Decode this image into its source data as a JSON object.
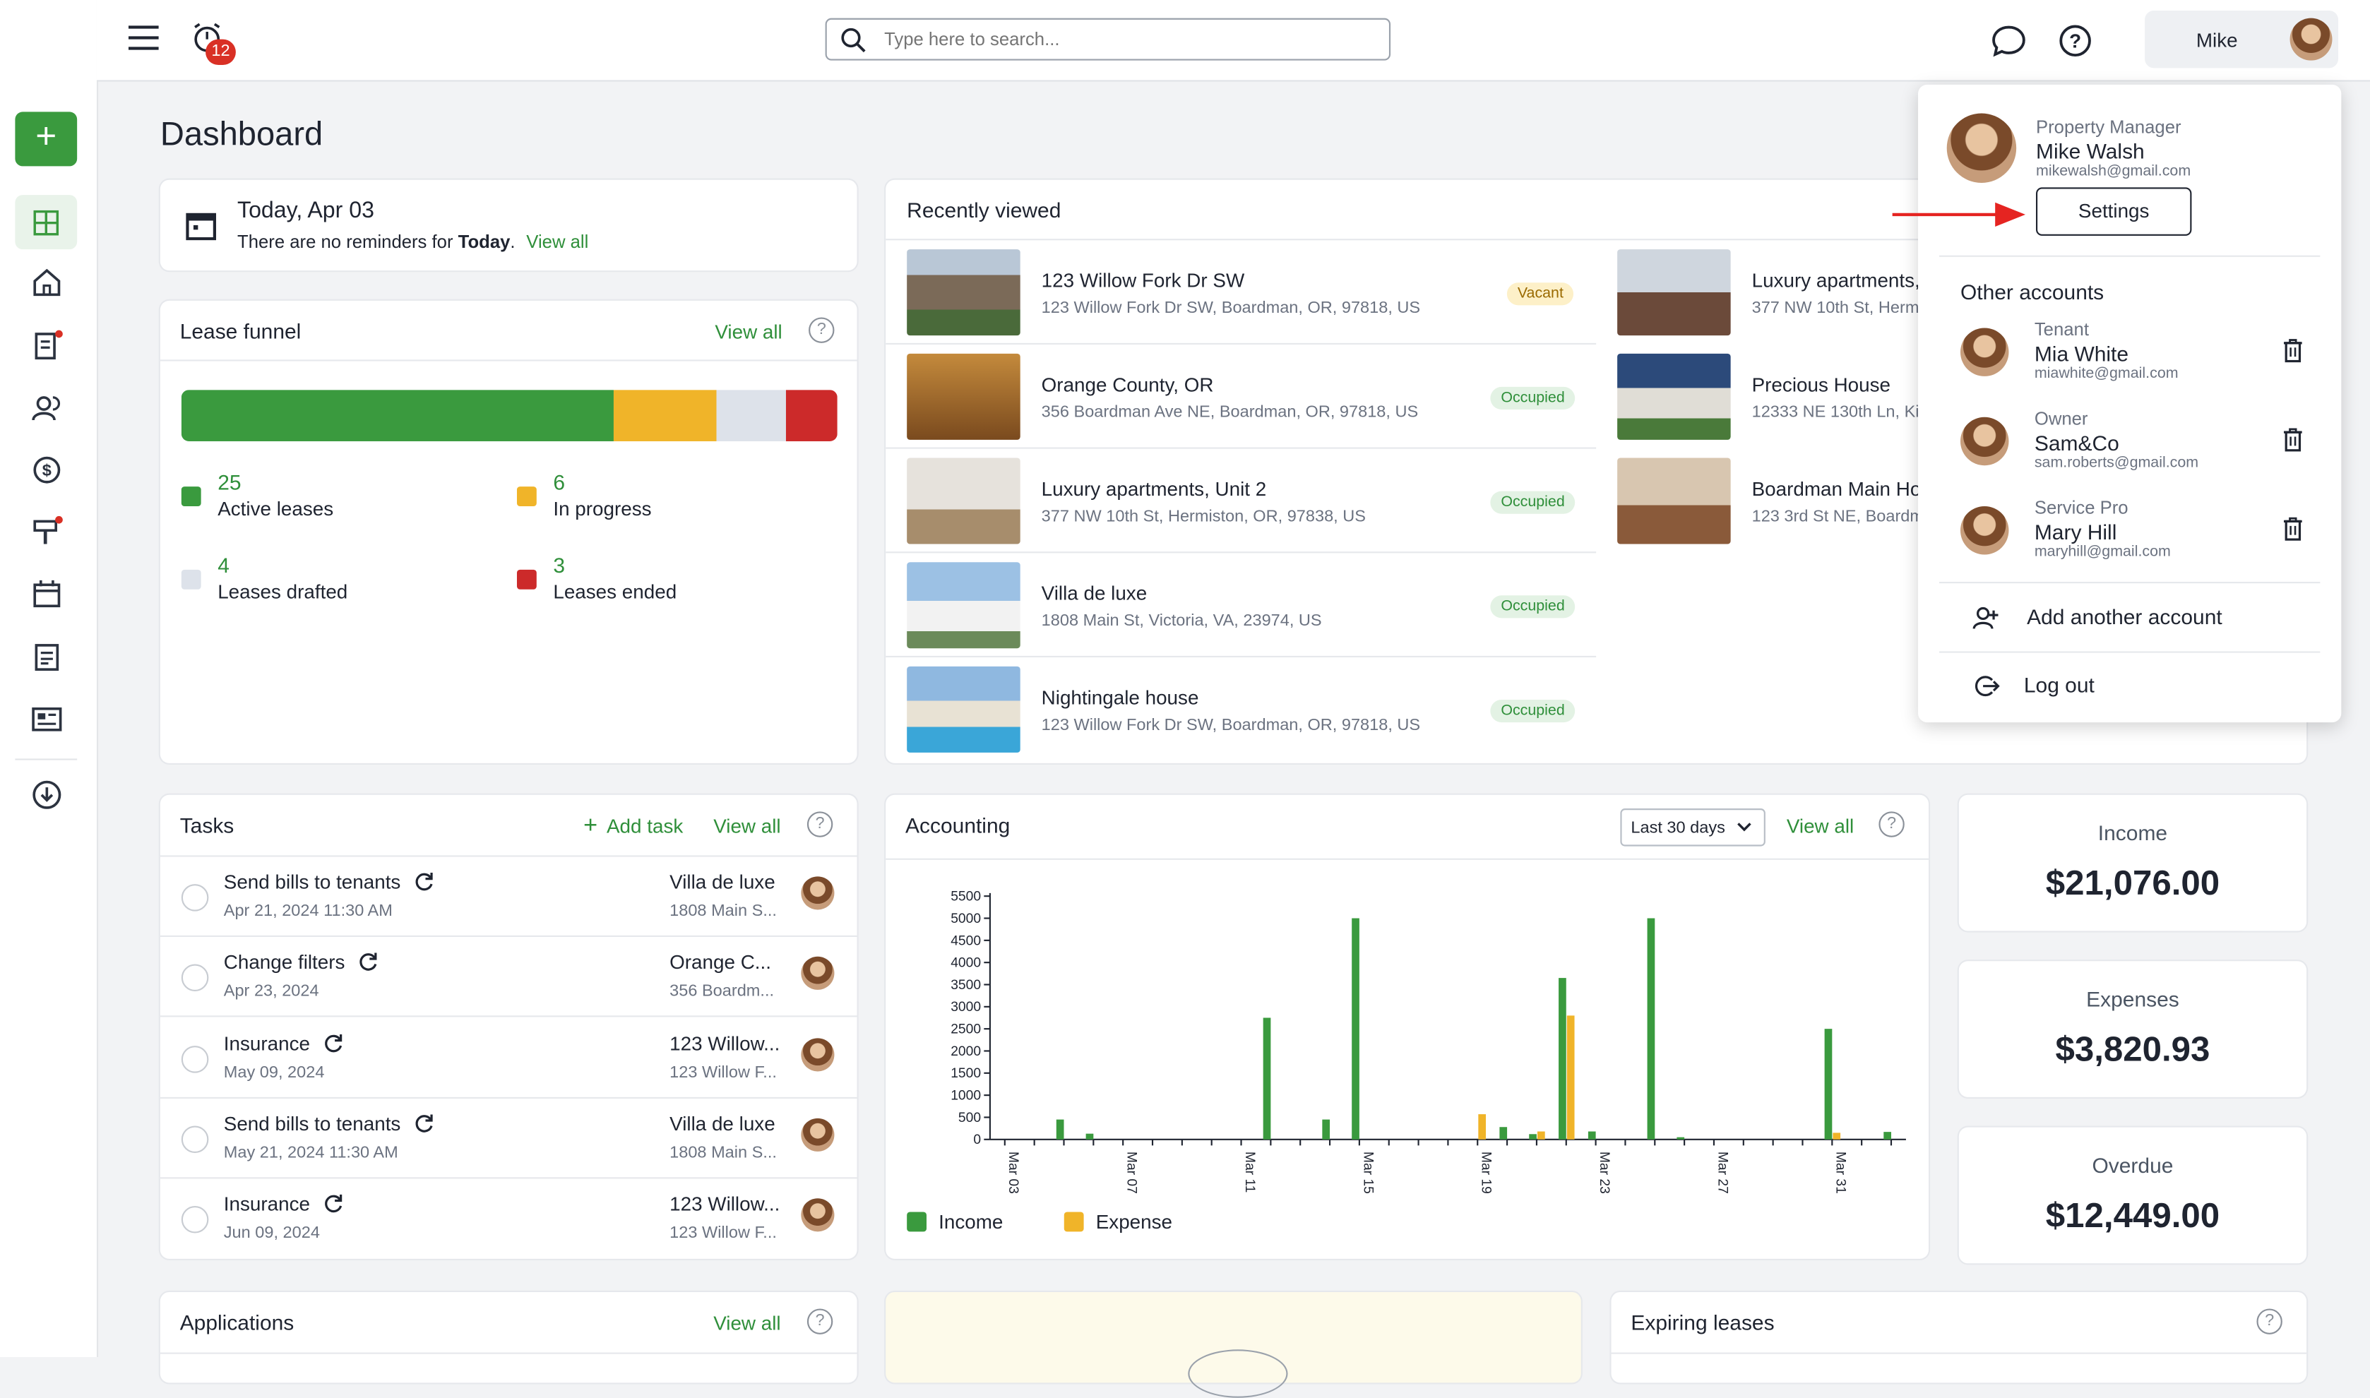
{
  "topbar": {
    "notification_count": "12",
    "search_placeholder": "Type here to search...",
    "user_name": "Mike"
  },
  "page_title": "Dashboard",
  "reminder": {
    "date": "Today, Apr 03",
    "text_prefix": "There are no reminders for",
    "text_bold": "Today",
    "text_suffix": ".",
    "view_all": "View all"
  },
  "lease_funnel": {
    "title": "Lease funnel",
    "view_all": "View all",
    "segments": [
      {
        "value": 25,
        "color": "#3a9a3e"
      },
      {
        "value": 6,
        "color": "#f0b429"
      },
      {
        "value": 4,
        "color": "#dde2ea"
      },
      {
        "value": 3,
        "color": "#cc2a2a"
      }
    ],
    "stats": [
      {
        "count": "25",
        "label": "Active leases",
        "color": "#3a9a3e"
      },
      {
        "count": "6",
        "label": "In progress",
        "color": "#f0b429"
      },
      {
        "count": "4",
        "label": "Leases drafted",
        "color": "#dde2ea"
      },
      {
        "count": "3",
        "label": "Leases ended",
        "color": "#cc2a2a"
      }
    ]
  },
  "recently_viewed": {
    "title": "Recently viewed",
    "left": [
      {
        "name": "123 Willow Fork Dr SW",
        "address": "123 Willow Fork Dr SW, Boardman, OR, 97818, US",
        "status": "Vacant"
      },
      {
        "name": "Orange County, OR",
        "address": "356 Boardman Ave NE, Boardman, OR, 97818, US",
        "status": "Occupied"
      },
      {
        "name": "Luxury apartments, Unit 2",
        "address": "377 NW 10th St, Hermiston, OR, 97838, US",
        "status": "Occupied"
      },
      {
        "name": "Villa de luxe",
        "address": "1808 Main St, Victoria, VA, 23974, US",
        "status": "Occupied"
      },
      {
        "name": "Nightingale house",
        "address": "123 Willow Fork Dr SW, Boardman, OR, 97818, US",
        "status": "Occupied"
      }
    ],
    "right": [
      {
        "name": "Luxury apartments,",
        "address": "377 NW 10th St, Herm"
      },
      {
        "name": "Precious House",
        "address": "12333 NE 130th Ln, Ki"
      },
      {
        "name": "Boardman Main Ho",
        "address": "123 3rd St NE, Boardm"
      }
    ]
  },
  "tasks": {
    "title": "Tasks",
    "add_task": "Add task",
    "view_all": "View all",
    "items": [
      {
        "name": "Send bills to tenants",
        "date": "Apr 21, 2024 11:30 AM",
        "prop": "Villa de luxe",
        "addr": "1808 Main S..."
      },
      {
        "name": "Change filters",
        "date": "Apr 23, 2024",
        "prop": "Orange C...",
        "addr": "356 Boardm..."
      },
      {
        "name": "Insurance",
        "date": "May 09, 2024",
        "prop": "123 Willow...",
        "addr": "123 Willow F..."
      },
      {
        "name": "Send bills to tenants",
        "date": "May 21, 2024 11:30 AM",
        "prop": "Villa de luxe",
        "addr": "1808 Main S..."
      },
      {
        "name": "Insurance",
        "date": "Jun 09, 2024",
        "prop": "123 Willow...",
        "addr": "123 Willow F..."
      }
    ]
  },
  "accounting": {
    "title": "Accounting",
    "range": "Last 30 days",
    "view_all": "View all",
    "legend_income": "Income",
    "legend_expense": "Expense"
  },
  "chart_data": {
    "type": "bar",
    "x": [
      "Mar 03",
      "Mar 04",
      "Mar 05",
      "Mar 06",
      "Mar 07",
      "Mar 08",
      "Mar 09",
      "Mar 10",
      "Mar 11",
      "Mar 12",
      "Mar 13",
      "Mar 14",
      "Mar 15",
      "Mar 16",
      "Mar 17",
      "Mar 18",
      "Mar 19",
      "Mar 20",
      "Mar 21",
      "Mar 22",
      "Mar 23",
      "Mar 24",
      "Mar 25",
      "Mar 26",
      "Mar 27",
      "Mar 28",
      "Mar 29",
      "Mar 30",
      "Mar 31",
      "Apr 01",
      "Apr 02"
    ],
    "xtick_labels": [
      "Mar 03",
      "Mar 07",
      "Mar 11",
      "Mar 15",
      "Mar 19",
      "Mar 23",
      "Mar 27",
      "Mar 31"
    ],
    "yticks": [
      0,
      500,
      1000,
      1500,
      2000,
      2500,
      3000,
      3500,
      4000,
      4500,
      5000,
      5500
    ],
    "ylim": [
      0,
      5500
    ],
    "series": [
      {
        "name": "Income",
        "color": "#3a9a3e",
        "values": [
          0,
          0,
          450,
          130,
          0,
          0,
          0,
          0,
          0,
          2750,
          0,
          450,
          5000,
          0,
          0,
          0,
          0,
          280,
          120,
          3650,
          180,
          0,
          5000,
          50,
          0,
          0,
          0,
          0,
          2500,
          0,
          170
        ]
      },
      {
        "name": "Expense",
        "color": "#f0b429",
        "values": [
          0,
          0,
          0,
          0,
          0,
          0,
          0,
          0,
          0,
          0,
          0,
          0,
          0,
          0,
          0,
          0,
          570,
          0,
          180,
          2800,
          0,
          0,
          0,
          0,
          0,
          0,
          0,
          0,
          150,
          0,
          0
        ]
      }
    ]
  },
  "summary": [
    {
      "label": "Income",
      "value": "$21,076.00"
    },
    {
      "label": "Expenses",
      "value": "$3,820.93"
    },
    {
      "label": "Overdue",
      "value": "$12,449.00"
    }
  ],
  "applications": {
    "title": "Applications",
    "view_all": "View all"
  },
  "expiring": {
    "title": "Expiring leases"
  },
  "account_menu": {
    "current": {
      "role": "Property Manager",
      "name": "Mike Walsh",
      "email": "mikewalsh@gmail.com",
      "settings": "Settings"
    },
    "other_title": "Other accounts",
    "others": [
      {
        "role": "Tenant",
        "name": "Mia White",
        "email": "miawhite@gmail.com"
      },
      {
        "role": "Owner",
        "name": "Sam&Co",
        "email": "sam.roberts@gmail.com"
      },
      {
        "role": "Service Pro",
        "name": "Mary Hill",
        "email": "maryhill@gmail.com"
      }
    ],
    "add_account": "Add another account",
    "logout": "Log out"
  },
  "colors": {
    "accent": "#2f8f3a",
    "annotation_arrow": "#e52421"
  }
}
